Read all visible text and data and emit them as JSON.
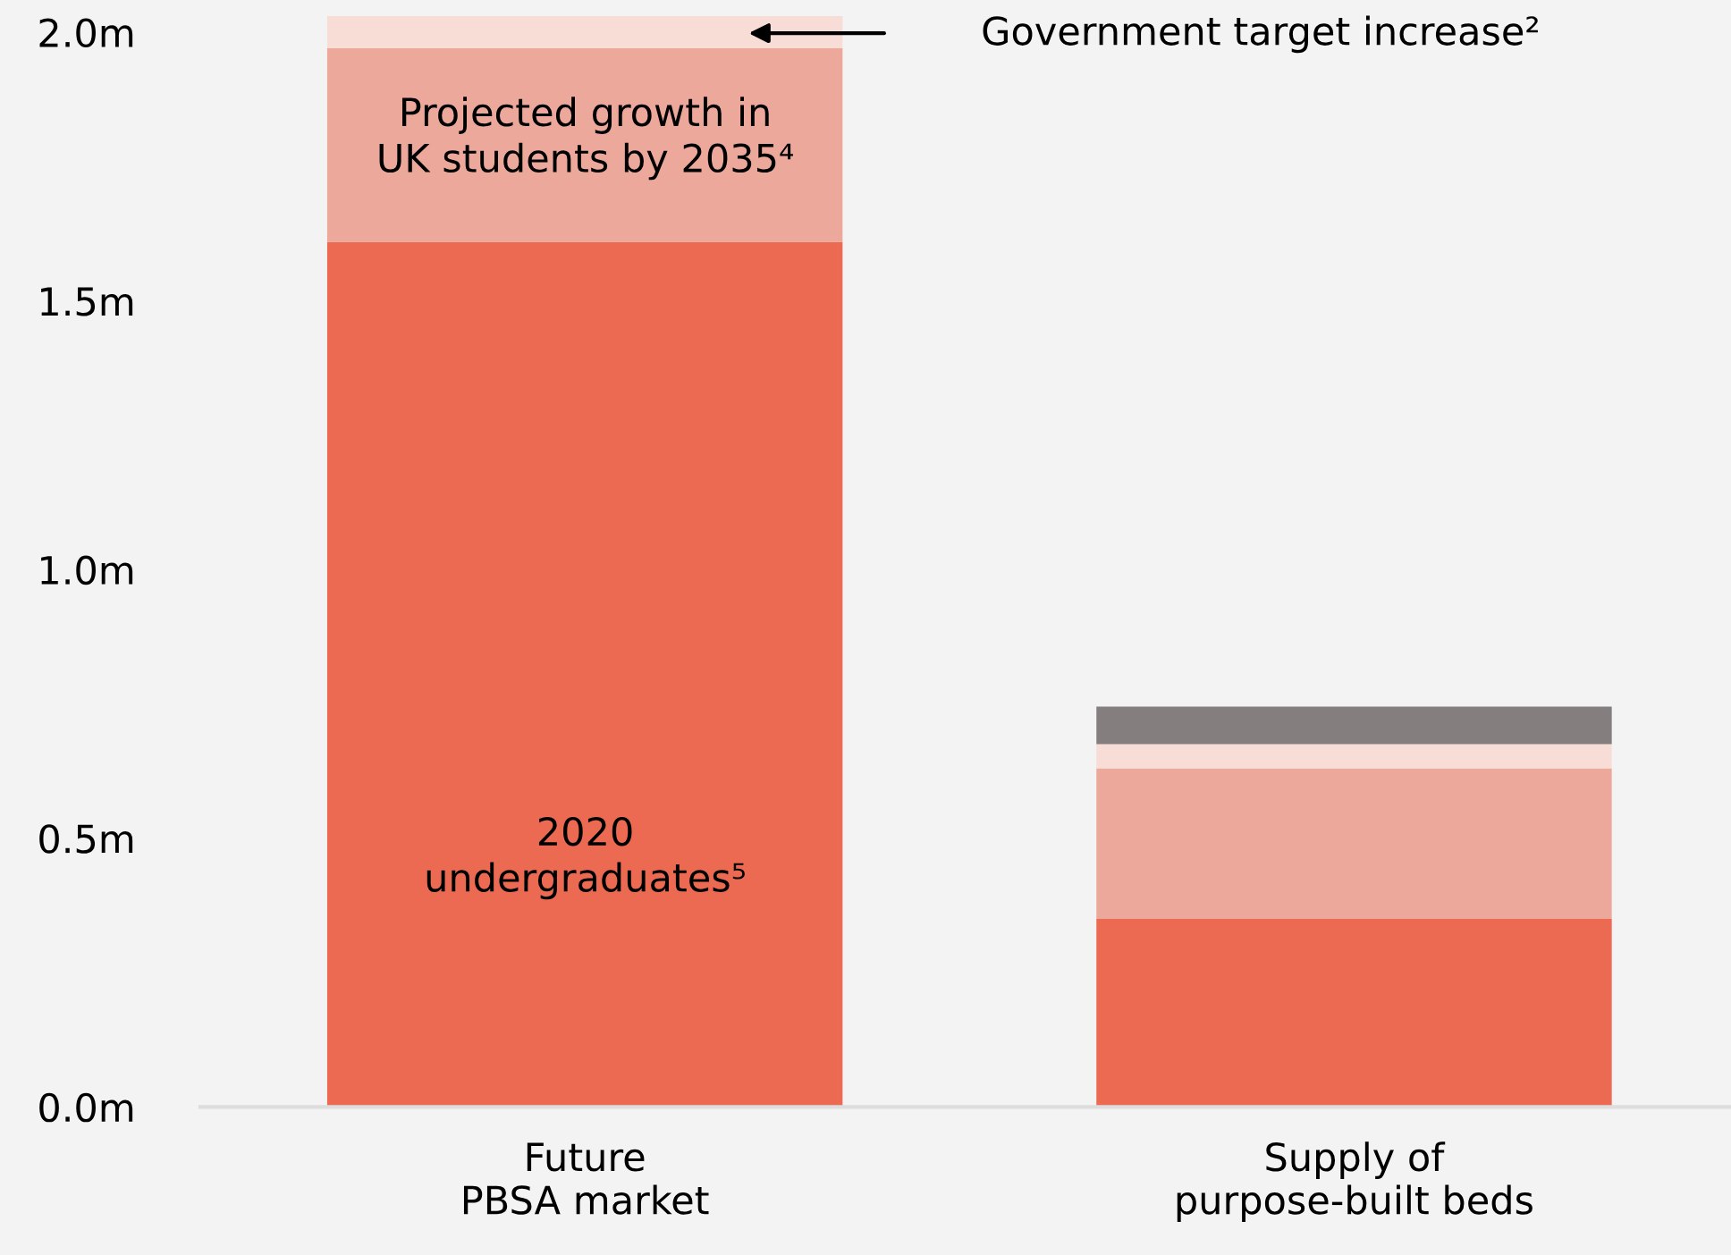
{
  "chart_data": {
    "type": "bar",
    "stacked": true,
    "categories": [
      "Future\nPBSA market",
      "Supply of\npurpose-built beds"
    ],
    "series": [
      {
        "color": "#ec6a52",
        "values": [
          1.61,
          0.35
        ]
      },
      {
        "color": "#eca99b",
        "values": [
          0.36,
          0.28
        ]
      },
      {
        "color": "#f8ddd6",
        "values": [
          0.06,
          0.045
        ]
      },
      {
        "color": "#847f7e",
        "values": [
          null,
          0.07
        ]
      }
    ],
    "ylim": [
      0,
      2.06
    ],
    "yticks": [
      {
        "value": 0,
        "label": "0.0m"
      },
      {
        "value": 0.5,
        "label": "0.5m"
      },
      {
        "value": 1.0,
        "label": "1.0m"
      },
      {
        "value": 1.5,
        "label": "1.5m"
      },
      {
        "value": 2.0,
        "label": "2.0m"
      }
    ],
    "grid": false,
    "legend": false,
    "annotations": [
      "Projected growth in\nUK students by 2035⁴",
      "2020\nundergraduates⁵",
      "Government target increase²"
    ]
  }
}
